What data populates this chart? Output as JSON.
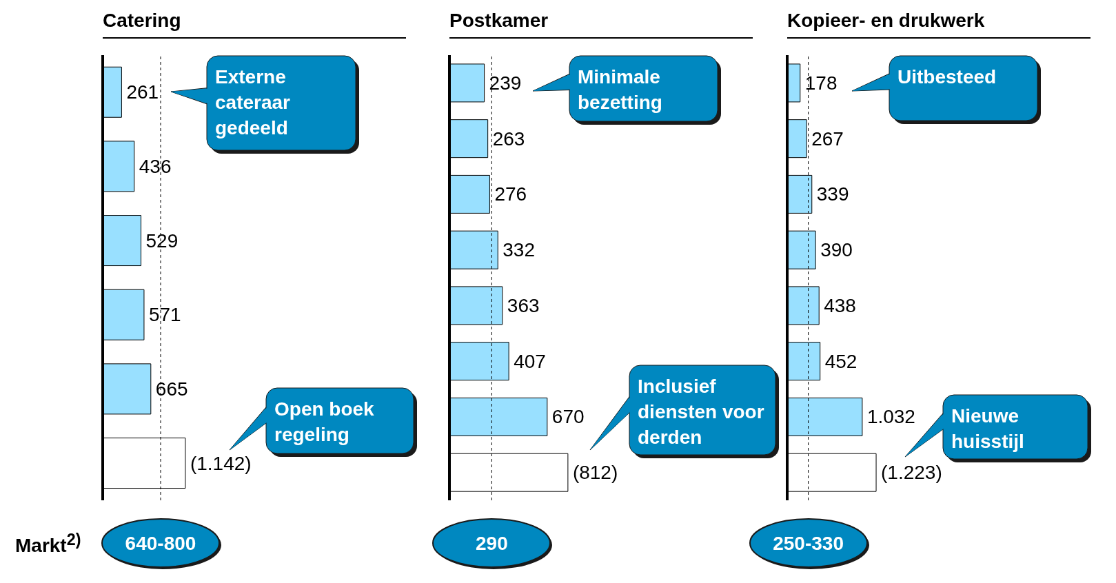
{
  "chart_data": [
    {
      "type": "bar",
      "orientation": "horizontal",
      "title": "Catering",
      "categories": [
        null,
        null,
        null,
        null,
        null,
        null
      ],
      "values": [
        261,
        436,
        529,
        571,
        665,
        1142
      ],
      "colors": [
        "#99e0ff",
        "#99e0ff",
        "#99e0ff",
        "#99e0ff",
        "#99e0ff",
        "#ffffff"
      ],
      "value_labels": [
        "261",
        "436",
        "529",
        "571",
        "665",
        "(1.142)"
      ],
      "tick_labels": false,
      "ref_lines": [
        {
          "axis": "x",
          "value": 800,
          "line_style": "dashed"
        }
      ],
      "annotations": [
        "Externe cateraar gedeeld",
        "Open boek regeling",
        "Markt$^{2)}$",
        "640-800"
      ]
    },
    {
      "type": "bar",
      "orientation": "horizontal",
      "title": "Postkamer",
      "categories": [
        null,
        null,
        null,
        null,
        null,
        null,
        null,
        null
      ],
      "values": [
        239,
        263,
        276,
        332,
        363,
        407,
        670,
        812
      ],
      "colors": [
        "#99e0ff",
        "#99e0ff",
        "#99e0ff",
        "#99e0ff",
        "#99e0ff",
        "#99e0ff",
        "#99e0ff",
        "#ffffff"
      ],
      "value_labels": [
        "239",
        "263",
        "276",
        "332",
        "363",
        "407",
        "670",
        "(812)"
      ],
      "tick_labels": false,
      "ref_lines": [
        {
          "axis": "x",
          "value": 290,
          "line_style": "dashed"
        }
      ],
      "annotations": [
        "Minimale bezetting",
        "Inclusief diensten voor derden",
        "290"
      ]
    },
    {
      "type": "bar",
      "orientation": "horizontal",
      "title": "Kopieer- en drukwerk",
      "categories": [
        null,
        null,
        null,
        null,
        null,
        null,
        null,
        null
      ],
      "values": [
        178,
        267,
        339,
        390,
        438,
        452,
        1032,
        1223
      ],
      "colors": [
        "#99e0ff",
        "#99e0ff",
        "#99e0ff",
        "#99e0ff",
        "#99e0ff",
        "#99e0ff",
        "#99e0ff",
        "#ffffff"
      ],
      "value_labels": [
        "178",
        "267",
        "339",
        "390",
        "438",
        "452",
        "1.032",
        "(1.223)"
      ],
      "tick_labels": false,
      "ref_lines": [
        {
          "axis": "x",
          "value": 290,
          "line_style": "dashed"
        }
      ],
      "annotations": [
        "Uitbesteed",
        "Nieuwe huisstijl",
        "250-330"
      ]
    }
  ]
}
